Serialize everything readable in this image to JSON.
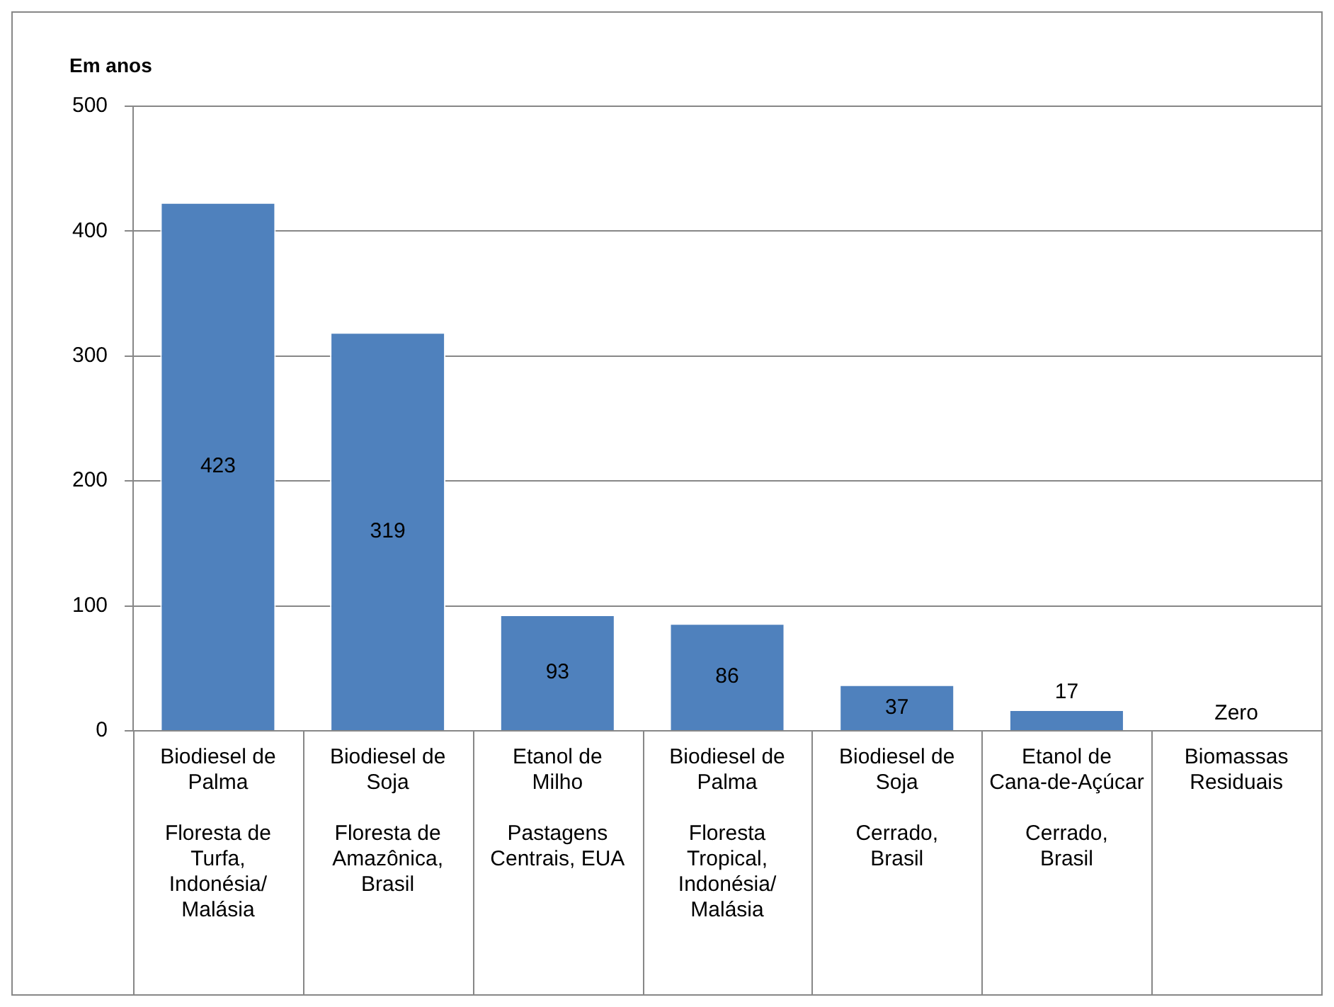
{
  "chart_data": {
    "type": "bar",
    "ylabel": "Em anos",
    "categories": [
      "Biodiesel de Palma\nFloresta de Turfa, Indonésia/ Malásia",
      "Biodiesel de Soja\nFloresta de Amazônica, Brasil",
      "Etanol de Milho\nPastagens Centrais, EUA",
      "Biodiesel de Palma\nFloresta Tropical, Indonésia/ Malásia",
      "Biodiesel de Soja\nCerrado, Brasil",
      "Etanol de Cana-de-Açúcar\nCerrado, Brasil",
      "Biomassas Residuais"
    ],
    "values": [
      423,
      319,
      93,
      86,
      37,
      17,
      0
    ],
    "value_labels": [
      "423",
      "319",
      "93",
      "86",
      "37",
      "17",
      "Zero"
    ],
    "color": "#4f81bd",
    "ylim": [
      0,
      500
    ],
    "yticks": [
      0,
      100,
      200,
      300,
      400,
      500
    ],
    "grid": "y"
  }
}
